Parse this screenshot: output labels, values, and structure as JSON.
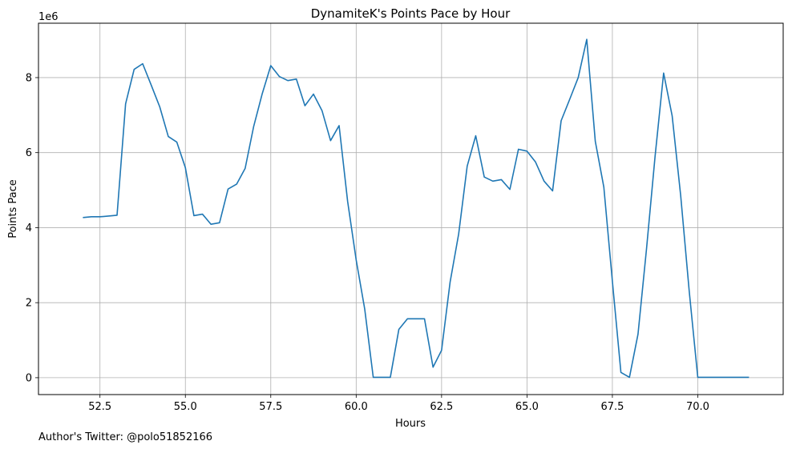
{
  "chart_data": {
    "type": "line",
    "title": "DynamiteK's Points Pace by Hour",
    "xlabel": "Hours",
    "ylabel": "Points Pace",
    "y_scale_label": "1e6",
    "y_multiplier": 1000000,
    "xlim": [
      50.7,
      72.5
    ],
    "ylim": [
      -0.45,
      9.45
    ],
    "xticks": [
      52.5,
      55.0,
      57.5,
      60.0,
      62.5,
      65.0,
      67.5,
      70.0
    ],
    "xtick_labels": [
      "52.5",
      "55.0",
      "57.5",
      "60.0",
      "62.5",
      "65.0",
      "67.5",
      "70.0"
    ],
    "yticks": [
      0,
      2,
      4,
      6,
      8
    ],
    "ytick_labels": [
      "0",
      "2",
      "4",
      "6",
      "8"
    ],
    "grid": true,
    "line_color": "#1f77b4",
    "series": [
      {
        "x": [
          52.0,
          52.25,
          52.5,
          52.75,
          53.0,
          53.25,
          53.5,
          53.75,
          54.0,
          54.25,
          54.5,
          54.75,
          55.0,
          55.25,
          55.5,
          55.75,
          56.0,
          56.25,
          56.5,
          56.75,
          57.0,
          57.25,
          57.5,
          57.75,
          58.0,
          58.25,
          58.5,
          58.75,
          59.0,
          59.25,
          59.5,
          59.75,
          60.0,
          60.25,
          60.5,
          60.75,
          61.0,
          61.25,
          61.5,
          61.75,
          62.0,
          62.25,
          62.5,
          62.75,
          63.0,
          63.25,
          63.5,
          63.75,
          64.0,
          64.25,
          64.5,
          64.75,
          65.0,
          65.25,
          65.5,
          65.75,
          66.0,
          66.25,
          66.5,
          66.75,
          67.0,
          67.25,
          67.5,
          67.75,
          68.0,
          68.25,
          68.5,
          68.75,
          69.0,
          69.25,
          69.5,
          69.75,
          70.0,
          70.25,
          70.5,
          70.75,
          71.0,
          71.25,
          71.5
        ],
        "values": [
          4.27,
          4.29,
          4.29,
          4.31,
          4.33,
          7.3,
          8.22,
          8.37,
          7.8,
          7.22,
          6.43,
          6.28,
          5.6,
          4.32,
          4.36,
          4.09,
          4.13,
          5.03,
          5.16,
          5.58,
          6.7,
          7.57,
          8.32,
          8.03,
          7.92,
          7.96,
          7.25,
          7.56,
          7.12,
          6.32,
          6.72,
          4.7,
          3.14,
          1.83,
          0.01,
          0.01,
          0.01,
          1.29,
          1.57,
          1.57,
          1.57,
          0.28,
          0.73,
          2.55,
          3.83,
          5.64,
          6.45,
          5.35,
          5.24,
          5.28,
          5.02,
          6.09,
          6.04,
          5.75,
          5.24,
          4.98,
          6.85,
          7.42,
          8.0,
          9.02,
          6.3,
          5.08,
          2.57,
          0.14,
          0.01,
          1.16,
          3.44,
          5.9,
          8.12,
          6.98,
          4.85,
          2.3,
          0.01,
          0.01,
          0.01,
          0.01,
          0.01,
          0.01,
          0.01
        ]
      }
    ]
  },
  "footnote": "Author's Twitter: @polo51852166"
}
